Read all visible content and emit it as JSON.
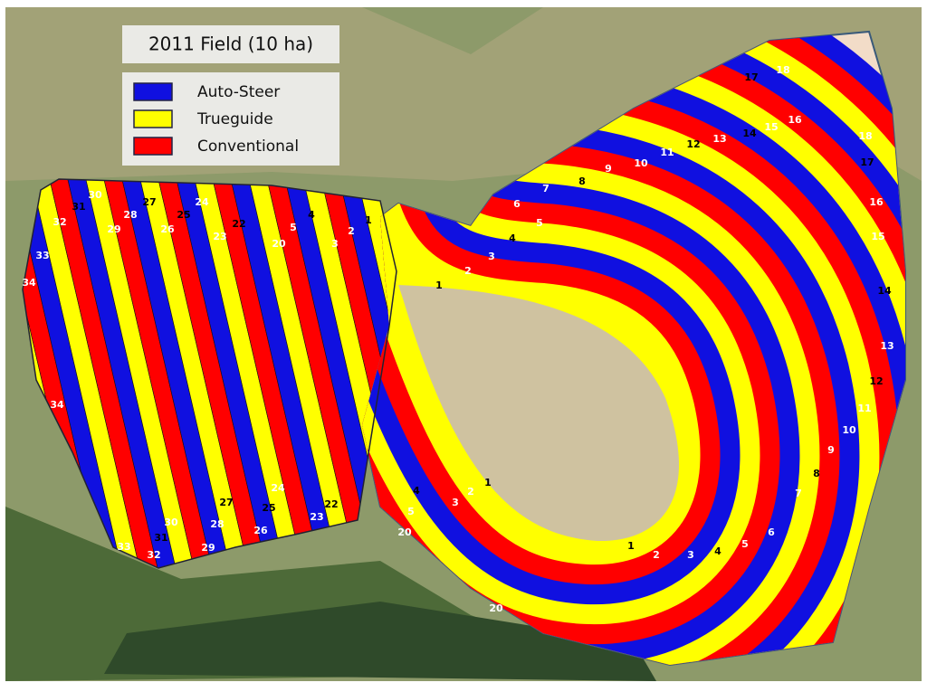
{
  "title": "2011 Field (10 ha)",
  "legend": [
    {
      "label": "Auto-Steer",
      "color": "#1010e0"
    },
    {
      "label": "Trueguide",
      "color": "#ffff00"
    },
    {
      "label": "Conventional",
      "color": "#ff0000"
    }
  ],
  "strip_labels": [
    "34",
    "33",
    "32",
    "31",
    "30",
    "29",
    "28",
    "27",
    "26",
    "25",
    "24",
    "23",
    "22",
    "20",
    "5",
    "4",
    "3",
    "2",
    "1",
    "34",
    "33",
    "32",
    "31",
    "30",
    "29",
    "28",
    "27",
    "26",
    "25",
    "24",
    "23",
    "22",
    "20",
    "20",
    "5",
    "4",
    "3",
    "2",
    "1",
    "1",
    "2",
    "3",
    "4",
    "5",
    "6",
    "7",
    "8",
    "9",
    "10",
    "11",
    "12",
    "13",
    "14",
    "15",
    "16",
    "17",
    "18",
    "18",
    "17",
    "16",
    "15",
    "14",
    "13",
    "12",
    "11",
    "10",
    "9",
    "8",
    "7",
    "6",
    "5",
    "4",
    "3",
    "2",
    "1"
  ]
}
